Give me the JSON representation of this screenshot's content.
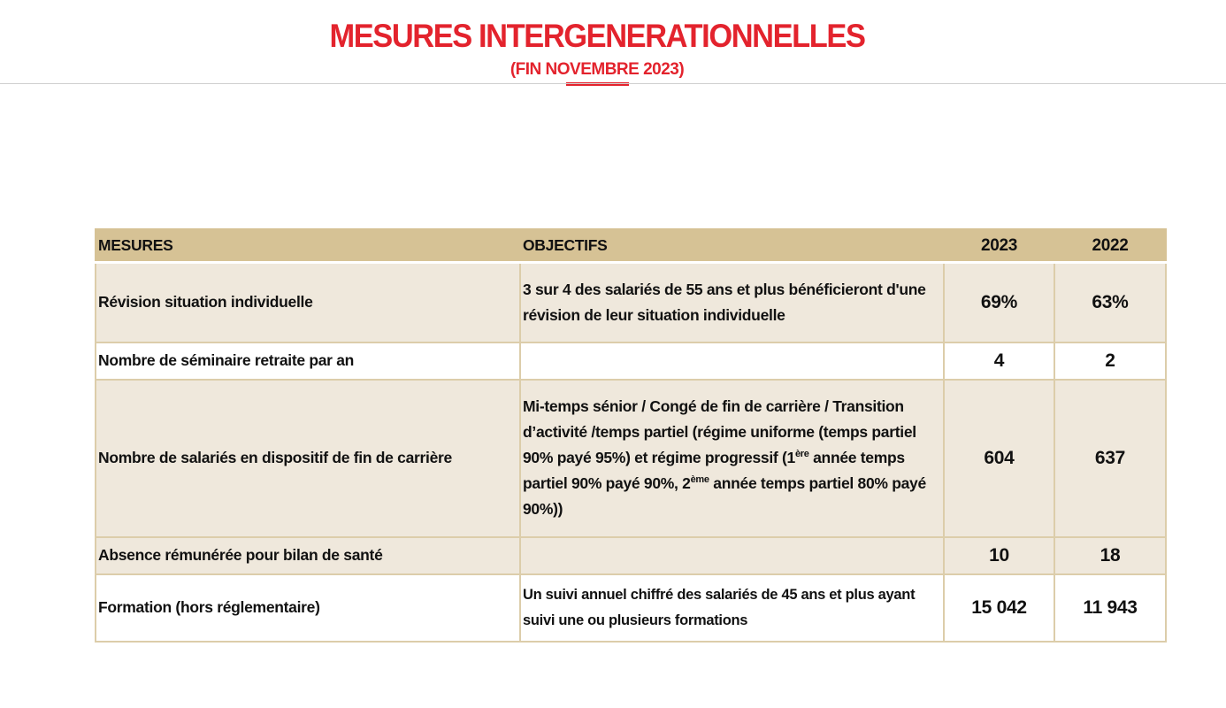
{
  "title": "MESURES INTERGENERATIONNELLES",
  "subtitle": "(FIN NOVEMBRE 2023)",
  "table": {
    "headers": [
      "MESURES",
      "OBJECTIFS",
      "2023",
      "2022"
    ],
    "rows": [
      {
        "mesure": "Révision situation individuelle",
        "objectif": "3 sur 4 des salariés de 55 ans et plus bénéficieront d'une révision de leur situation individuelle",
        "v2023": "69%",
        "v2022": "63%"
      },
      {
        "mesure": "Nombre de séminaire retraite par an",
        "objectif": "",
        "v2023": "4",
        "v2022": "2"
      },
      {
        "mesure": "Nombre de salariés en dispositif de fin de carrière",
        "objectif_parts": [
          "Mi-temps sénior / Congé de fin de carrière / Transition d’activité /temps partiel (régime uniforme (temps partiel 90% payé 95%) et régime progressif (1",
          "ère",
          " année temps partiel 90% payé 90%, 2",
          "ème",
          " année temps partiel 80% payé 90%))"
        ],
        "v2023": "604",
        "v2022": "637"
      },
      {
        "mesure": "Absence rémunérée pour bilan de santé",
        "objectif": "",
        "v2023": "10",
        "v2022": "18"
      },
      {
        "mesure": "Formation (hors réglementaire)",
        "objectif": "Un suivi annuel chiffré des salariés de 45 ans et plus ayant suivi une ou plusieurs formations",
        "v2023": "15 042",
        "v2022": "11 943"
      }
    ]
  },
  "colors": {
    "title": "#e3232d",
    "header_bg": "#d6c295",
    "row_bg": "#efe8dc"
  }
}
